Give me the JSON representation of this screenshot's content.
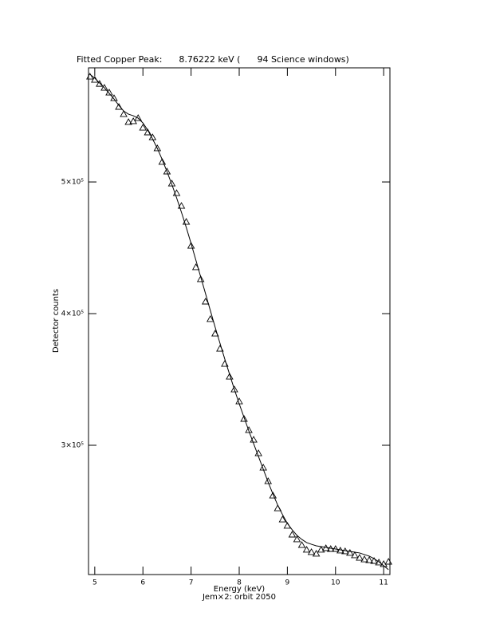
{
  "chart_data": {
    "type": "scatter",
    "title": "Fitted Copper Peak:      8.76222 keV (      94 Science windows)",
    "x_label": "Energy (keV)",
    "subtitle": "Jem×2: orbit 2050",
    "y_label": "Detector counts",
    "x": [
      4.9,
      5.0,
      5.1,
      5.2,
      5.3,
      5.4,
      5.5,
      5.6,
      5.7,
      5.8,
      5.9,
      6.0,
      6.1,
      6.2,
      6.3,
      6.4,
      6.5,
      6.6,
      6.7,
      6.8,
      6.9,
      7.0,
      7.1,
      7.2,
      7.3,
      7.4,
      7.5,
      7.6,
      7.7,
      7.8,
      7.9,
      8.0,
      8.1,
      8.2,
      8.3,
      8.4,
      8.5,
      8.6,
      8.7,
      8.8,
      8.9,
      9.0,
      9.1,
      9.2,
      9.3,
      9.4,
      9.5,
      9.6,
      9.7,
      9.8,
      9.9,
      10.0,
      10.1,
      10.2,
      10.3,
      10.4,
      10.5,
      10.6,
      10.7,
      10.8,
      10.9,
      11.0,
      11.1
    ],
    "series": [
      {
        "marker": "triangle",
        "color": "#000000",
        "values": [
          580000,
          577600,
          574500,
          571500,
          567900,
          563600,
          557000,
          551500,
          545500,
          546100,
          548500,
          541200,
          537600,
          533900,
          525500,
          515200,
          507900,
          498800,
          491500,
          481800,
          469700,
          451500,
          435200,
          426100,
          409100,
          395800,
          384800,
          373300,
          361800,
          352100,
          342400,
          333300,
          320000,
          311500,
          304200,
          293900,
          283000,
          272700,
          261800,
          252100,
          243600,
          238800,
          232100,
          228500,
          224200,
          220600,
          218800,
          217600,
          220600,
          221800,
          221200,
          221200,
          220000,
          219400,
          218200,
          216400,
          214500,
          213300,
          212700,
          212100,
          210900,
          209700,
          211500
        ]
      },
      {
        "marker": "line",
        "color": "#000000",
        "values": [
          581800,
          578800,
          575200,
          571500,
          567300,
          563000,
          558200,
          553900,
          551500,
          550300,
          548500,
          544800,
          539400,
          532700,
          525500,
          517000,
          507900,
          498200,
          487900,
          477000,
          465500,
          453300,
          440600,
          427900,
          415200,
          402400,
          389700,
          377600,
          365500,
          353900,
          342400,
          331500,
          321200,
          310900,
          301200,
          291500,
          281800,
          272100,
          263000,
          254500,
          247300,
          240600,
          235800,
          231500,
          228500,
          226100,
          224800,
          223600,
          223000,
          222400,
          221800,
          221200,
          220600,
          220000,
          219400,
          218800,
          218200,
          217000,
          215800,
          213900,
          211500,
          208500,
          205500
        ]
      }
    ],
    "xlim": [
      4.87,
      11.13
    ],
    "ylim": [
      201800,
      586700
    ],
    "xticks": [
      5,
      6,
      7,
      8,
      9,
      10,
      11
    ],
    "yticks": [
      {
        "value": 300000,
        "label": "3×10⁵"
      },
      {
        "value": 400000,
        "label": "4×10⁵"
      },
      {
        "value": 500000,
        "label": "5×10⁵"
      }
    ]
  }
}
